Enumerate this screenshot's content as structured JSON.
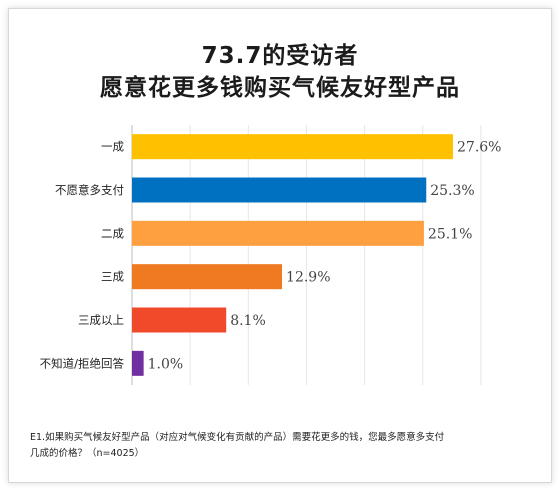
{
  "title_line1": "73.7的受访者",
  "title_line2": "愿意花更多钱购买气候友好型产品",
  "footnote_line1": "E1.如果购买气候友好型产品（对应对气候变化有贡献的产品）需要花更多的钱，您最多愿意多支付",
  "footnote_line2": "几成的价格？（n=4025）",
  "chart_data": {
    "type": "bar",
    "orientation": "horizontal",
    "categories": [
      "一成",
      "不愿意多支付",
      "二成",
      "三成",
      "三成以上",
      "不知道/拒绝回答"
    ],
    "values": [
      27.6,
      25.3,
      25.1,
      12.9,
      8.1,
      1.0
    ],
    "value_labels": [
      "27.6%",
      "25.3%",
      "25.1%",
      "12.9%",
      "8.1%",
      "1.0%"
    ],
    "colors": [
      "#ffc000",
      "#0070c0",
      "#ffa040",
      "#f07a22",
      "#f04a2a",
      "#7030a0"
    ],
    "xlim": [
      0,
      30
    ],
    "grid": true
  }
}
